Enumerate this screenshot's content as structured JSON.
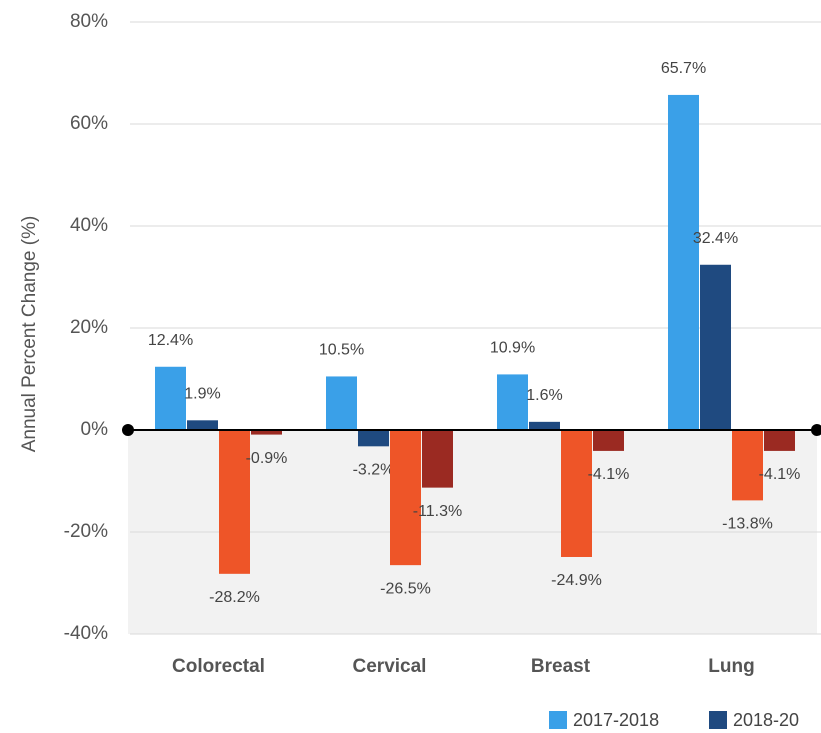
{
  "chart_data": {
    "type": "bar",
    "y_label": "Annual Percent Change (%)",
    "categories": [
      "Colorectal",
      "Cervical",
      "Breast",
      "Lung"
    ],
    "series": [
      {
        "name": "2017-2018",
        "color": "#3aa0e8",
        "values": [
          12.4,
          10.5,
          10.9,
          65.7
        ],
        "value_labels": [
          "12.4%",
          "10.5%",
          "10.9%",
          "65.7%"
        ]
      },
      {
        "name": "2018-20",
        "color": "#1f4a80",
        "values": [
          1.9,
          -3.2,
          1.6,
          32.4
        ],
        "value_labels": [
          "1.9%",
          "-3.2%",
          "1.6%",
          "32.4%"
        ]
      },
      {
        "color": "#ee5528",
        "values": [
          -28.2,
          -26.5,
          -24.9,
          -13.8
        ],
        "value_labels": [
          "-28.2%",
          "-26.5%",
          "-24.9%",
          "-13.8%"
        ]
      },
      {
        "color": "#9b2a22",
        "values": [
          -0.9,
          -11.3,
          -4.1,
          -4.1
        ],
        "value_labels": [
          "-0.9%",
          "-11.3%",
          "-4.1%",
          "-4.1%"
        ]
      }
    ],
    "ylim": [
      -40,
      80
    ],
    "yticks": [
      {
        "value": -40,
        "label": "-40%"
      },
      {
        "value": -20,
        "label": "-20%"
      },
      {
        "value": 0,
        "label": "0%"
      },
      {
        "value": 20,
        "label": "20%"
      },
      {
        "value": 40,
        "label": "40%"
      },
      {
        "value": 60,
        "label": "60%"
      },
      {
        "value": 80,
        "label": "80%"
      }
    ],
    "grid": true,
    "legend": "bottom-right"
  }
}
